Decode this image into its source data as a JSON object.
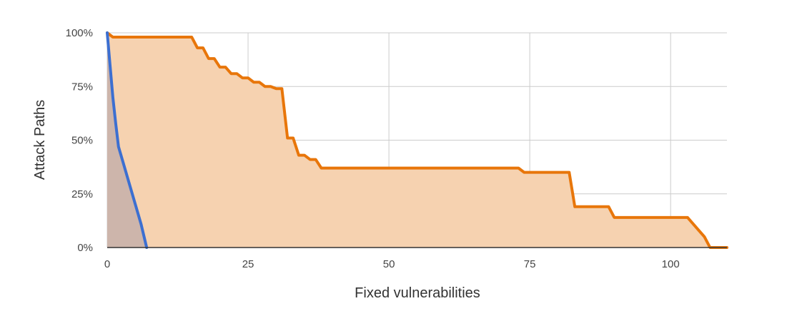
{
  "chart_data": {
    "type": "area",
    "title": "",
    "xlabel": "Fixed vulnerabilities",
    "ylabel": "Attack Paths",
    "xlim": [
      0,
      110
    ],
    "ylim": [
      0,
      100
    ],
    "x_ticks": [
      0,
      25,
      50,
      75,
      100
    ],
    "y_ticks": [
      0,
      25,
      50,
      75,
      100
    ],
    "x_tick_labels": [
      "0",
      "25",
      "50",
      "75",
      "100"
    ],
    "y_tick_labels": [
      "0%",
      "25%",
      "50%",
      "75%",
      "100%"
    ],
    "grid": true,
    "legend": "none",
    "series": [
      {
        "color": "#e8760a",
        "fill": "#f6d2b0",
        "points": [
          [
            0,
            100
          ],
          [
            1,
            98
          ],
          [
            15,
            98
          ],
          [
            16,
            93
          ],
          [
            17,
            93
          ],
          [
            18,
            88
          ],
          [
            19,
            88
          ],
          [
            20,
            84
          ],
          [
            21,
            84
          ],
          [
            22,
            81
          ],
          [
            23,
            81
          ],
          [
            24,
            79
          ],
          [
            25,
            79
          ],
          [
            26,
            77
          ],
          [
            27,
            77
          ],
          [
            28,
            75
          ],
          [
            29,
            75
          ],
          [
            30,
            74
          ],
          [
            31,
            74
          ],
          [
            32,
            51
          ],
          [
            33,
            51
          ],
          [
            34,
            43
          ],
          [
            35,
            43
          ],
          [
            36,
            41
          ],
          [
            37,
            41
          ],
          [
            38,
            37
          ],
          [
            73,
            37
          ],
          [
            74,
            35
          ],
          [
            82,
            35
          ],
          [
            83,
            19
          ],
          [
            89,
            19
          ],
          [
            90,
            14
          ],
          [
            103,
            14
          ],
          [
            105,
            8
          ],
          [
            106,
            5
          ],
          [
            107,
            0
          ],
          [
            110,
            0
          ]
        ]
      },
      {
        "color": "#3c6fd1",
        "fill": "#cdb5ab",
        "points": [
          [
            0,
            100
          ],
          [
            0.5,
            85
          ],
          [
            1,
            70
          ],
          [
            1.5,
            58
          ],
          [
            2,
            47
          ],
          [
            3,
            38
          ],
          [
            4,
            29
          ],
          [
            5,
            20
          ],
          [
            6,
            11
          ],
          [
            7,
            0
          ]
        ]
      }
    ]
  }
}
